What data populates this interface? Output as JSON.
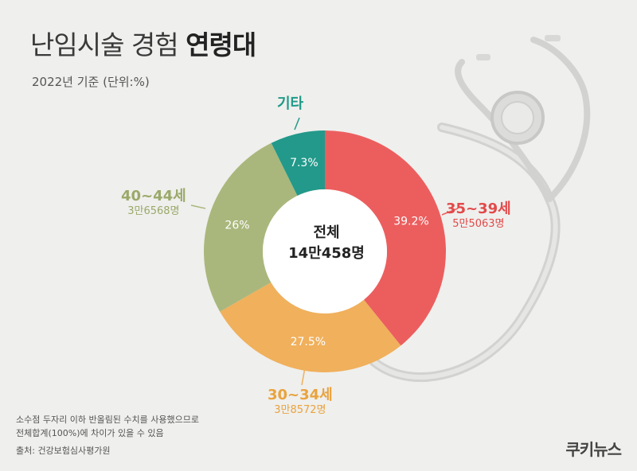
{
  "header": {
    "title_light": "난임시술 경험",
    "title_bold": "연령대",
    "subtitle": "2022년 기준 (단위:%)"
  },
  "center": {
    "line1": "전체",
    "line2": "14만458명"
  },
  "chart_data": {
    "type": "pie",
    "donut": true,
    "unit": "%",
    "slices": [
      {
        "name": "35~39세",
        "value": 39.2,
        "value_label": "39.2%",
        "count": "5만5063명",
        "color": "#ec5e5e",
        "label_color": "#e24a4a"
      },
      {
        "name": "30~34세",
        "value": 27.5,
        "value_label": "27.5%",
        "count": "3만8572명",
        "color": "#f0b05c",
        "label_color": "#e9a33f"
      },
      {
        "name": "40~44세",
        "value": 26,
        "value_label": "26%",
        "count": "3만6568명",
        "color": "#a9b77c",
        "label_color": "#9aa96a"
      },
      {
        "name": "기타",
        "value": 7.3,
        "value_label": "7.3%",
        "count": "",
        "color": "#22998a",
        "label_color": "#1f9a88"
      }
    ]
  },
  "footer": {
    "note_line1": "소수점 두자리 이하 반올림된 수치를 사용했으므로",
    "note_line2": "전체합계(100%)에 차이가 있을 수 있음",
    "source": "출처: 건강보험심사평가원",
    "logo": "쿠키뉴스"
  }
}
